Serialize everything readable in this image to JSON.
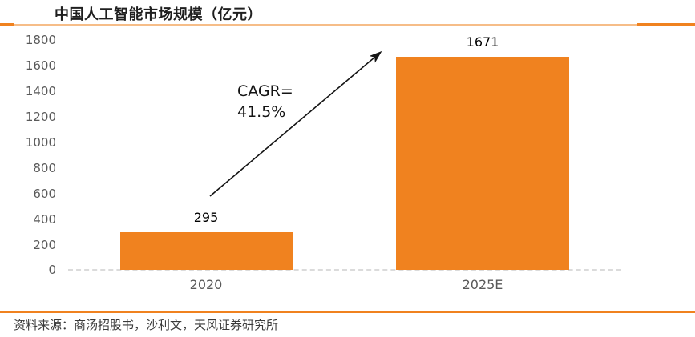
{
  "page": {
    "title": "中国人工智能市场规模（亿元）",
    "source_note": "资料来源：商汤招股书，沙利文，天风证券研究所"
  },
  "colors": {
    "bar": "#f0821f",
    "accent_rule_dark": "#f0821f",
    "accent_rule_light": "#f6bd88",
    "axis_line": "#dbdbdb",
    "tick_text": "#595959",
    "value_text": "#000000",
    "source_text": "#3a3a3a"
  },
  "chart_data": {
    "type": "bar",
    "title": "中国人工智能市场规模（亿元）",
    "categories": [
      "2020",
      "2025E"
    ],
    "values": [
      295,
      1671
    ],
    "ylim": [
      0,
      1800
    ],
    "yticks": [
      1800,
      1600,
      1400,
      1200,
      1000,
      800,
      600,
      400,
      200,
      0
    ],
    "grid": "off",
    "legend": "none",
    "bar_color": "#f0821f",
    "annotation": {
      "line1": "CAGR=",
      "line2": "41.5%"
    }
  }
}
